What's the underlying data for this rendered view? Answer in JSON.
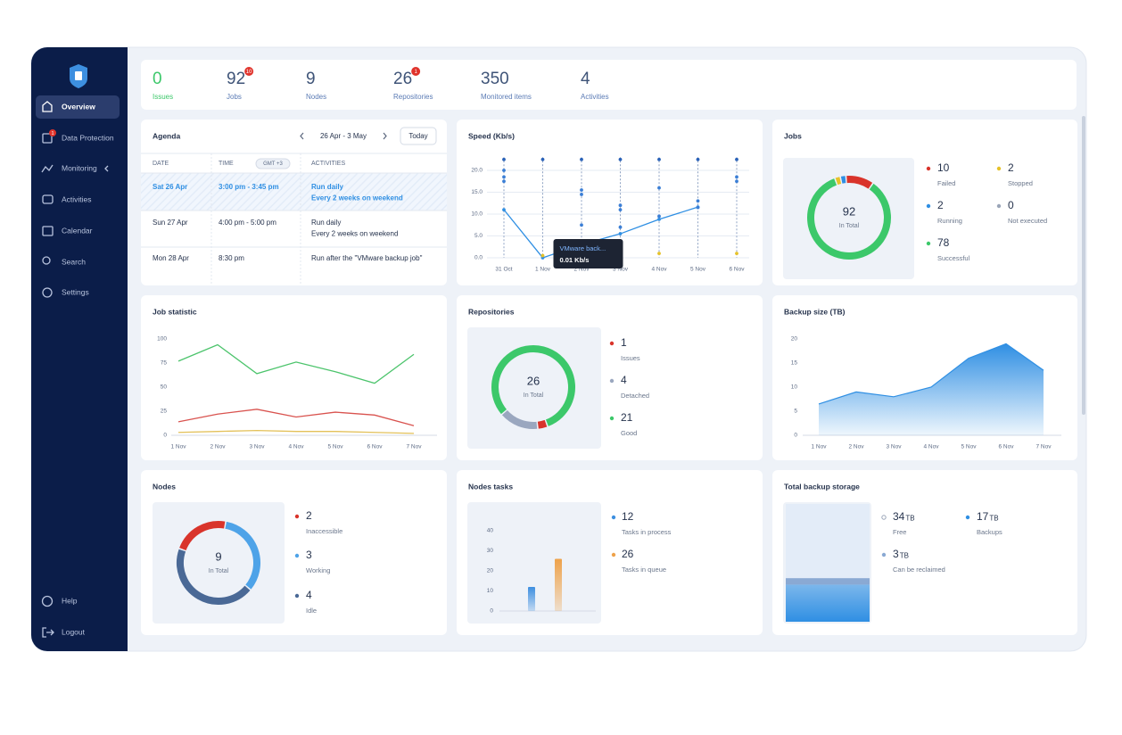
{
  "sidebar": {
    "items": [
      {
        "label": "Overview"
      },
      {
        "label": "Data Protection",
        "badge": 1
      },
      {
        "label": "Monitoring"
      },
      {
        "label": "Activities"
      },
      {
        "label": "Calendar"
      },
      {
        "label": "Search"
      },
      {
        "label": "Settings"
      }
    ],
    "bottom": [
      "Help",
      "Logout"
    ]
  },
  "stats": [
    {
      "value": 0,
      "label": "Issues"
    },
    {
      "value": 92,
      "label": "Jobs",
      "badge": 10
    },
    {
      "value": 9,
      "label": "Nodes"
    },
    {
      "value": 26,
      "label": "Repositories",
      "badge": 1
    },
    {
      "value": 350,
      "label": "Monitored items"
    },
    {
      "value": 4,
      "label": "Activities"
    }
  ],
  "agenda": {
    "title": "Agenda",
    "range": "26 Apr - 3 May",
    "today": "Today",
    "headers": {
      "date": "DATE",
      "time": "TIME",
      "timezone": "GMT +3",
      "activities": "ACTIVITIES"
    },
    "rows": [
      {
        "date": "Sat 26 Apr",
        "time": "3:00 pm - 3:45 pm",
        "activity": [
          "Run daily",
          "Every 2 weeks on weekend"
        ]
      },
      {
        "date": "Sun 27 Apr",
        "time": "4:00 pm - 5:00 pm",
        "activity": [
          "Run daily",
          "Every 2 weeks on weekend"
        ]
      },
      {
        "date": "Mon 28 Apr",
        "time": "8:30 pm",
        "activity": [
          "Run after the \"VMware backup job\""
        ]
      }
    ]
  },
  "chart_data": [
    {
      "type": "line",
      "title": "Speed (Kb/s)",
      "categories": [
        "31 Oct",
        "1 Nov",
        "2 Nov",
        "3 Nov",
        "4 Nov",
        "5 Nov",
        "6 Nov"
      ],
      "series": [
        {
          "color": "#2f8fe3",
          "style": "line",
          "markers": true,
          "values": [
            11,
            0.01,
            3,
            5.5,
            8.8,
            11.6,
            null
          ]
        },
        {
          "color": "#2a62b8",
          "style": "markers",
          "values": [
            22.5,
            22.5,
            22.5,
            22.5,
            22.5,
            22.5,
            22.5
          ]
        },
        {
          "color": "#3b7fd6",
          "style": "markers",
          "values": [
            20,
            null,
            15.5,
            12,
            16,
            13,
            18.5
          ]
        },
        {
          "color": "#3b7fd6",
          "style": "markers",
          "values": [
            18.5,
            null,
            14.5,
            11,
            9.5,
            11.5,
            17.5
          ]
        },
        {
          "color": "#3b7fd6",
          "style": "markers",
          "values": [
            17.5,
            null,
            7.5,
            7,
            null,
            null,
            null
          ]
        },
        {
          "color": "#e6c229",
          "style": "markers",
          "values": [
            null,
            0.5,
            null,
            null,
            1,
            null,
            1
          ]
        }
      ],
      "ylim": [
        0,
        23
      ],
      "yticks": [
        {
          "value": 0,
          "label": "0.0"
        },
        {
          "value": 5,
          "label": "5.0"
        },
        {
          "value": 10,
          "label": "10.0"
        },
        {
          "value": 15,
          "label": "15.0"
        },
        {
          "value": 20,
          "label": "20.0"
        }
      ],
      "grid": true,
      "tooltip": {
        "title": "VMware back...",
        "text": "0.01 Kb/s"
      }
    },
    {
      "type": "pie",
      "title": "Jobs",
      "categories": [
        "Failed",
        "Stopped",
        "Running",
        "Not executed",
        "Successful"
      ],
      "values": [
        10,
        2,
        2,
        0,
        78
      ],
      "colors": [
        "#d9342b",
        "#e6c229",
        "#2f8fe3",
        "#9aa5b8",
        "#3cc86a"
      ],
      "center_value": 92,
      "center_label": "In Total"
    },
    {
      "type": "line",
      "title": "Job statistic",
      "categories": [
        "1 Nov",
        "2 Nov",
        "3 Nov",
        "4 Nov",
        "5 Nov",
        "6 Nov",
        "7 Nov"
      ],
      "series": [
        {
          "color": "#4cc46c",
          "style": "line",
          "values": [
            77,
            94,
            64,
            76,
            66,
            54,
            84
          ]
        },
        {
          "color": "#d9534f",
          "style": "line",
          "values": [
            14,
            22,
            27,
            19,
            24,
            21,
            10
          ]
        },
        {
          "color": "#e3c15a",
          "style": "line",
          "values": [
            3,
            4,
            5,
            4,
            4,
            3,
            2
          ]
        }
      ],
      "ylim": [
        0,
        100
      ],
      "yticks": [
        0,
        25,
        50,
        75,
        100
      ],
      "grid": false
    },
    {
      "type": "pie",
      "title": "Repositories",
      "categories": [
        "Issues",
        "Detached",
        "Good"
      ],
      "values": [
        1,
        4,
        21
      ],
      "colors": [
        "#d9342b",
        "#9aa7bf",
        "#3cc86a"
      ],
      "center_value": 26,
      "center_label": "In Total"
    },
    {
      "type": "area",
      "title": "Backup size (TB)",
      "categories": [
        "1 Nov",
        "2 Nov",
        "3 Nov",
        "4 Nov",
        "5 Nov",
        "6 Nov",
        "7 Nov"
      ],
      "series": [
        {
          "color": "#2f8fe3",
          "values": [
            6.5,
            9,
            8,
            10,
            16,
            19,
            13.5
          ]
        }
      ],
      "ylim": [
        0,
        20
      ],
      "yticks": [
        0,
        5,
        10,
        15,
        20
      ],
      "grid": false
    },
    {
      "type": "pie",
      "title": "Nodes",
      "categories": [
        "Inaccessible",
        "Working",
        "Idle"
      ],
      "values": [
        2,
        3,
        4
      ],
      "colors": [
        "#d9342b",
        "#4ea3e8",
        "#4a6996"
      ],
      "center_value": 9,
      "center_label": "In Total"
    },
    {
      "type": "bar",
      "title": "Nodes tasks",
      "series": [
        {
          "name": "Tasks in process",
          "color": "#3d8fe0",
          "values": [
            12
          ]
        },
        {
          "name": "Tasks in queue",
          "color": "#eea24a",
          "values": [
            26
          ]
        }
      ],
      "ylim": [
        0,
        45
      ],
      "yticks": [
        0,
        10,
        20,
        30,
        40
      ],
      "grid": false
    },
    {
      "type": "stacked_bar",
      "title": "Total backup storage",
      "unit": "TB",
      "series": [
        {
          "name": "Free",
          "color": "#e3ecf8",
          "values": [
            34
          ]
        },
        {
          "name": "Backups",
          "color": "#2f8fe3",
          "values": [
            17
          ]
        },
        {
          "name": "Can be reclaimed",
          "color": "#8aa9d3",
          "values": [
            3
          ]
        }
      ]
    }
  ]
}
